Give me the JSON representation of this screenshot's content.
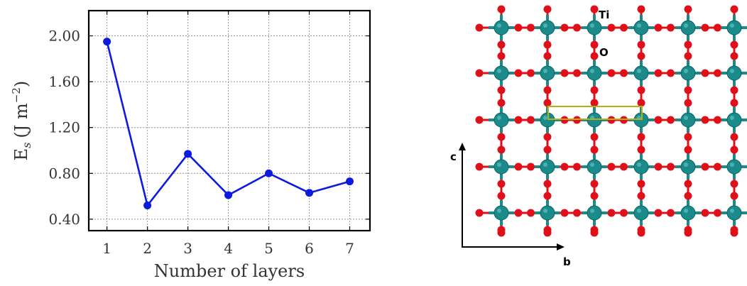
{
  "chart_data": {
    "type": "line",
    "title": "",
    "xlabel": "Number of layers",
    "ylabel_main": "E",
    "ylabel_sub": "s",
    "ylabel_unit": "(J m",
    "ylabel_exp": "−2",
    "ylabel_close": ")",
    "x": [
      1,
      2,
      3,
      4,
      5,
      6,
      7
    ],
    "x_ticks": [
      "1",
      "2",
      "3",
      "4",
      "5",
      "6",
      "7"
    ],
    "y_ticks": [
      "0.40",
      "0.80",
      "1.20",
      "1.60",
      "2.00"
    ],
    "y_tick_values": [
      0.4,
      0.8,
      1.2,
      1.6,
      2.0
    ],
    "xlim": [
      0.55,
      7.5
    ],
    "ylim": [
      0.3,
      2.22
    ],
    "grid": true,
    "series": [
      {
        "values": [
          1.95,
          0.52,
          0.97,
          0.61,
          0.8,
          0.63,
          0.73
        ],
        "color": "#0d1be0"
      }
    ]
  },
  "structure": {
    "atom_labels": {
      "ti": "Ti",
      "o": "O"
    },
    "axis_labels": {
      "vertical": "c",
      "horizontal": "b"
    },
    "colors": {
      "ti": "#1a8a8a",
      "o": "#e0101a",
      "cell": "#b5b017"
    }
  }
}
